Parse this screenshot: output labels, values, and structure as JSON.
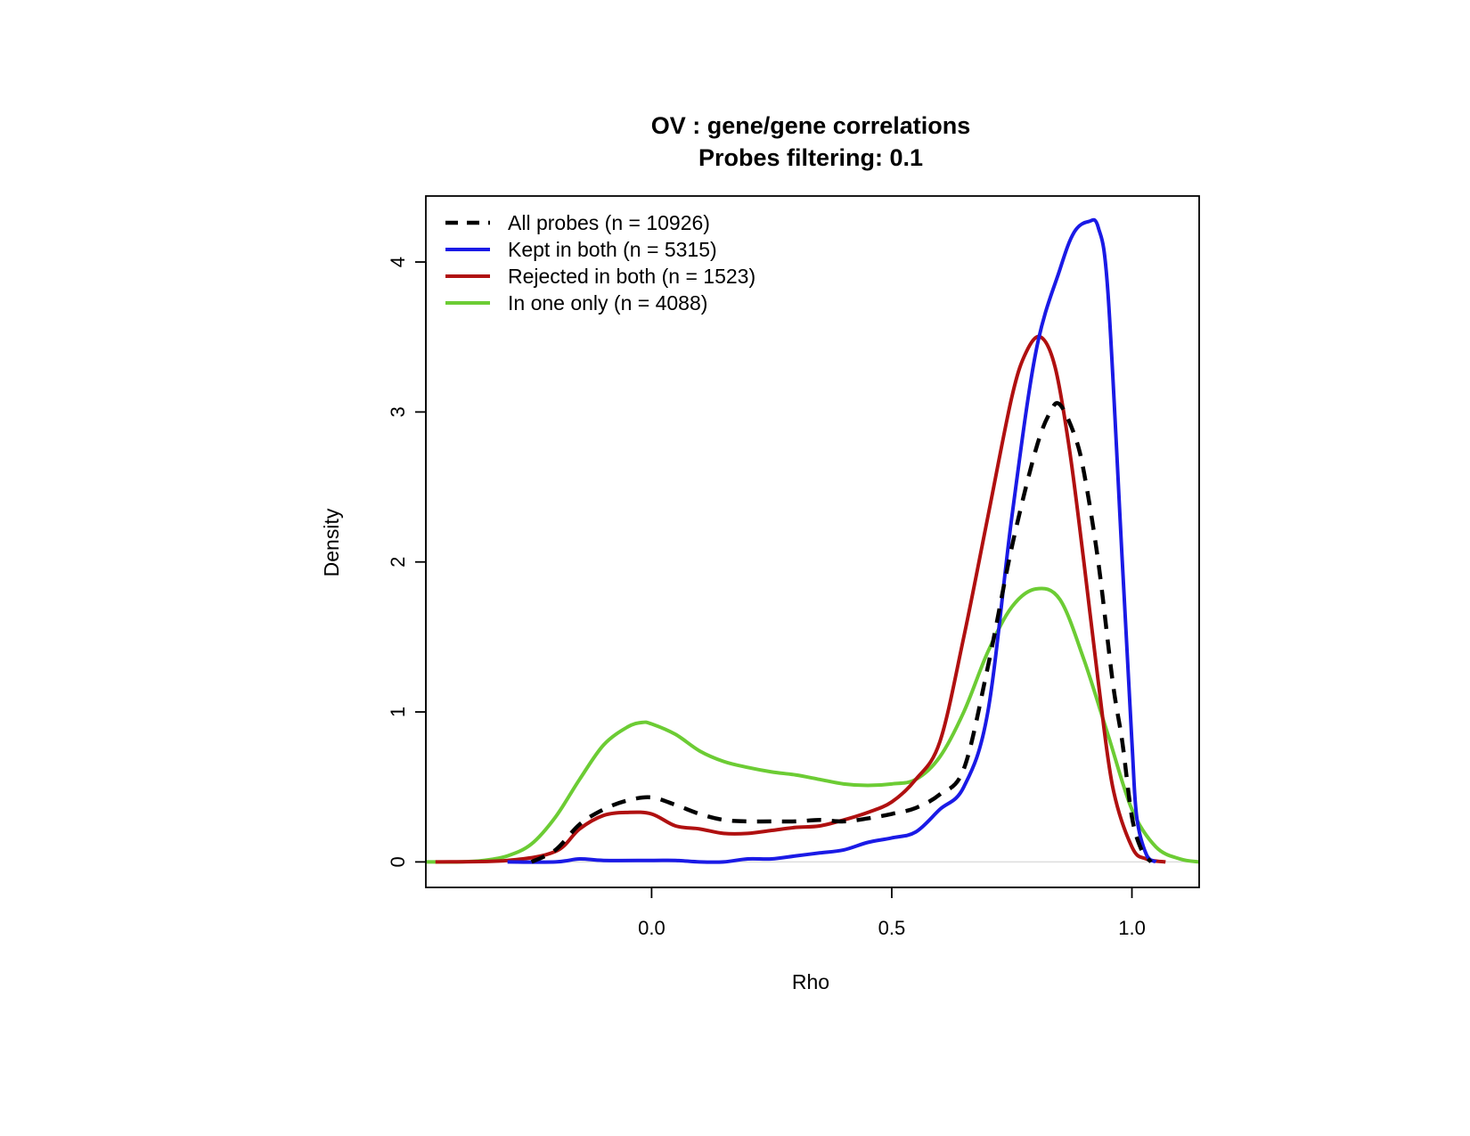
{
  "chart_data": {
    "type": "line",
    "title": "OV : gene/gene correlations",
    "subtitle": "Probes filtering: 0.1",
    "xlabel": "Rho",
    "ylabel": "Density",
    "xlim": [
      -0.47,
      1.14
    ],
    "ylim": [
      -0.17,
      4.44
    ],
    "x_ticks": [
      {
        "value": 0.0,
        "label": "0.0"
      },
      {
        "value": 0.5,
        "label": "0.5"
      },
      {
        "value": 1.0,
        "label": "1.0"
      }
    ],
    "y_ticks": [
      {
        "value": 0,
        "label": "0"
      },
      {
        "value": 1,
        "label": "1"
      },
      {
        "value": 2,
        "label": "2"
      },
      {
        "value": 3,
        "label": "3"
      },
      {
        "value": 4,
        "label": "4"
      }
    ],
    "grid": false,
    "legend_position": "top-left",
    "series": [
      {
        "name": "All probes (n = 10926)",
        "color": "#000000",
        "dash": "dashed",
        "points": [
          [
            -0.25,
            0.0
          ],
          [
            -0.2,
            0.08
          ],
          [
            -0.15,
            0.25
          ],
          [
            -0.1,
            0.35
          ],
          [
            -0.05,
            0.41
          ],
          [
            0.0,
            0.43
          ],
          [
            0.05,
            0.38
          ],
          [
            0.1,
            0.32
          ],
          [
            0.15,
            0.28
          ],
          [
            0.2,
            0.27
          ],
          [
            0.25,
            0.27
          ],
          [
            0.3,
            0.27
          ],
          [
            0.35,
            0.28
          ],
          [
            0.4,
            0.27
          ],
          [
            0.45,
            0.29
          ],
          [
            0.5,
            0.32
          ],
          [
            0.55,
            0.36
          ],
          [
            0.6,
            0.45
          ],
          [
            0.65,
            0.62
          ],
          [
            0.7,
            1.3
          ],
          [
            0.75,
            2.1
          ],
          [
            0.8,
            2.75
          ],
          [
            0.83,
            3.0
          ],
          [
            0.85,
            3.05
          ],
          [
            0.88,
            2.85
          ],
          [
            0.9,
            2.6
          ],
          [
            0.93,
            2.0
          ],
          [
            0.96,
            1.2
          ],
          [
            0.98,
            0.8
          ],
          [
            1.0,
            0.3
          ],
          [
            1.02,
            0.08
          ],
          [
            1.04,
            0.0
          ]
        ]
      },
      {
        "name": "Kept in both (n = 5315)",
        "color": "#1a1ae6",
        "dash": "solid",
        "points": [
          [
            -0.3,
            0.0
          ],
          [
            -0.2,
            0.0
          ],
          [
            -0.15,
            0.02
          ],
          [
            -0.1,
            0.01
          ],
          [
            0.0,
            0.01
          ],
          [
            0.05,
            0.01
          ],
          [
            0.1,
            0.0
          ],
          [
            0.15,
            0.0
          ],
          [
            0.2,
            0.02
          ],
          [
            0.25,
            0.02
          ],
          [
            0.3,
            0.04
          ],
          [
            0.35,
            0.06
          ],
          [
            0.4,
            0.08
          ],
          [
            0.45,
            0.13
          ],
          [
            0.5,
            0.16
          ],
          [
            0.55,
            0.2
          ],
          [
            0.6,
            0.35
          ],
          [
            0.65,
            0.5
          ],
          [
            0.7,
            1.0
          ],
          [
            0.75,
            2.3
          ],
          [
            0.8,
            3.4
          ],
          [
            0.85,
            3.95
          ],
          [
            0.88,
            4.2
          ],
          [
            0.91,
            4.27
          ],
          [
            0.93,
            4.23
          ],
          [
            0.95,
            3.8
          ],
          [
            0.98,
            2.0
          ],
          [
            1.0,
            0.8
          ],
          [
            1.01,
            0.3
          ],
          [
            1.03,
            0.05
          ],
          [
            1.05,
            0.0
          ]
        ]
      },
      {
        "name": "Rejected in both (n = 1523)",
        "color": "#b01010",
        "dash": "solid",
        "points": [
          [
            -0.45,
            0.0
          ],
          [
            -0.3,
            0.01
          ],
          [
            -0.2,
            0.07
          ],
          [
            -0.15,
            0.22
          ],
          [
            -0.1,
            0.31
          ],
          [
            -0.05,
            0.33
          ],
          [
            0.0,
            0.32
          ],
          [
            0.05,
            0.24
          ],
          [
            0.1,
            0.22
          ],
          [
            0.15,
            0.19
          ],
          [
            0.2,
            0.19
          ],
          [
            0.25,
            0.21
          ],
          [
            0.3,
            0.23
          ],
          [
            0.35,
            0.24
          ],
          [
            0.4,
            0.28
          ],
          [
            0.45,
            0.33
          ],
          [
            0.5,
            0.4
          ],
          [
            0.55,
            0.55
          ],
          [
            0.6,
            0.8
          ],
          [
            0.65,
            1.5
          ],
          [
            0.7,
            2.3
          ],
          [
            0.75,
            3.1
          ],
          [
            0.78,
            3.4
          ],
          [
            0.81,
            3.5
          ],
          [
            0.84,
            3.3
          ],
          [
            0.87,
            2.75
          ],
          [
            0.9,
            2.0
          ],
          [
            0.93,
            1.2
          ],
          [
            0.96,
            0.5
          ],
          [
            1.0,
            0.1
          ],
          [
            1.03,
            0.02
          ],
          [
            1.07,
            0.0
          ]
        ]
      },
      {
        "name": "In one only (n = 4088)",
        "color": "#6ccc34",
        "dash": "solid",
        "points": [
          [
            -0.47,
            0.0
          ],
          [
            -0.4,
            0.0
          ],
          [
            -0.35,
            0.01
          ],
          [
            -0.3,
            0.04
          ],
          [
            -0.25,
            0.12
          ],
          [
            -0.2,
            0.3
          ],
          [
            -0.15,
            0.55
          ],
          [
            -0.1,
            0.78
          ],
          [
            -0.05,
            0.9
          ],
          [
            -0.02,
            0.93
          ],
          [
            0.0,
            0.92
          ],
          [
            0.05,
            0.85
          ],
          [
            0.1,
            0.74
          ],
          [
            0.15,
            0.67
          ],
          [
            0.2,
            0.63
          ],
          [
            0.25,
            0.6
          ],
          [
            0.3,
            0.58
          ],
          [
            0.35,
            0.55
          ],
          [
            0.4,
            0.52
          ],
          [
            0.45,
            0.51
          ],
          [
            0.5,
            0.52
          ],
          [
            0.55,
            0.55
          ],
          [
            0.6,
            0.7
          ],
          [
            0.65,
            1.0
          ],
          [
            0.7,
            1.4
          ],
          [
            0.75,
            1.7
          ],
          [
            0.8,
            1.82
          ],
          [
            0.85,
            1.75
          ],
          [
            0.9,
            1.35
          ],
          [
            0.95,
            0.85
          ],
          [
            1.0,
            0.35
          ],
          [
            1.05,
            0.1
          ],
          [
            1.1,
            0.02
          ],
          [
            1.14,
            0.0
          ]
        ]
      }
    ]
  }
}
